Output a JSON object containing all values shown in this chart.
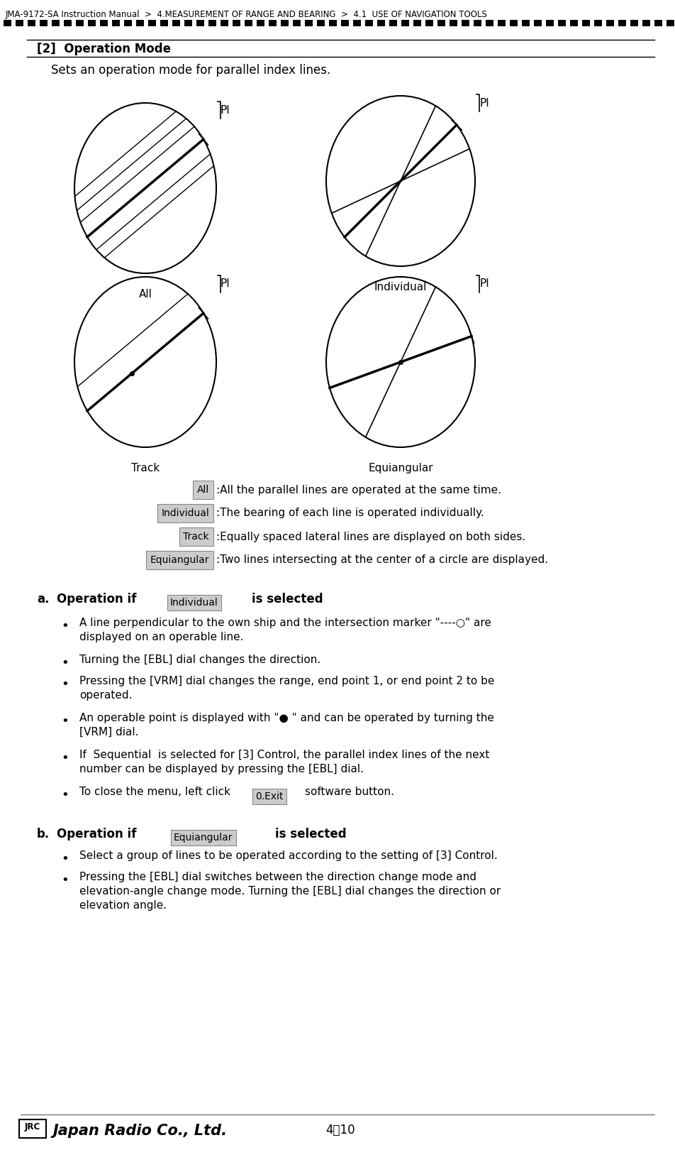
{
  "bg_color": "#ffffff",
  "header_text": "JMA-9172-SA Instruction Manual  >  4.MEASUREMENT OF RANGE AND BEARING  >  4.1  USE OF NAVIGATION TOOLS",
  "section_title": "[2]  Operation Mode",
  "intro_text": "Sets an operation mode for parallel index lines.",
  "button_descriptions": {
    "All": ":All the parallel lines are operated at the same time.",
    "Individual": ":The bearing of each line is operated individually.",
    "Track": ":Equally spaced lateral lines are displayed on both sides.",
    "Equiangular": ":Two lines intersecting at the center of a circle are displayed."
  },
  "section_a_bullets": [
    "A line perpendicular to the own ship and the intersection marker \"----○\" are\ndisplayed on an operable line.",
    "Turning the [EBL] dial changes the direction.",
    "Pressing the [VRM] dial changes the range, end point 1, or end point 2 to be\noperated.",
    "An operable point is displayed with \"● \" and can be operated by turning the\n[VRM] dial.",
    "If  Sequential  is selected for [3] Control, the parallel index lines of the next\nnumber can be displayed by pressing the [EBL] dial.",
    "To close the menu, left click @@EXIT@@ software button."
  ],
  "exit_button": "0.Exit",
  "section_b_bullets": [
    "Select a group of lines to be operated according to the setting of [3] Control.",
    "Pressing the [EBL] dial switches between the direction change mode and\nelevation-angle change mode. Turning the [EBL] dial changes the direction or\nelevation angle."
  ],
  "footer_page": "4－10"
}
